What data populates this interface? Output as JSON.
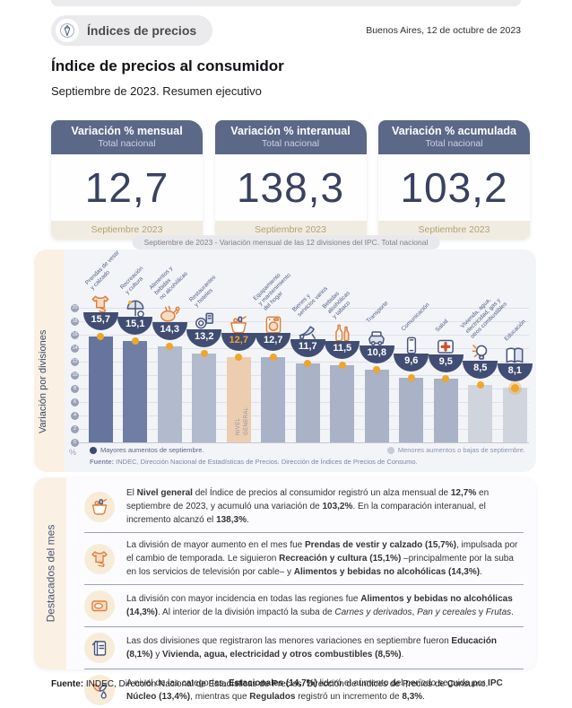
{
  "header": {
    "badge_label": "Índices de precios",
    "date": "Buenos Aires, 12 de octubre de 2023"
  },
  "title": "Índice de precios al consumidor",
  "subtitle": "Septiembre de 2023. Resumen ejecutivo",
  "kpis": {
    "items": [
      {
        "title": "Variación % mensual",
        "subtitle": "Total nacional",
        "value": "12,7",
        "period": "Septiembre 2023"
      },
      {
        "title": "Variación % interanual",
        "subtitle": "Total nacional",
        "value": "138,3",
        "period": "Septiembre 2023"
      },
      {
        "title": "Variación % acumulada",
        "subtitle": "Total nacional",
        "value": "103,2",
        "period": "Septiembre 2023"
      }
    ]
  },
  "chart_data": {
    "type": "bar",
    "title": "Septiembre de 2023 - Variación mensual de las 12 divisiones del IPC. Total nacional",
    "y_axis_title": "Variación por divisiones",
    "y_unit": "%",
    "ylim": [
      0,
      20
    ],
    "yticks": [
      20,
      18,
      16,
      14,
      12,
      10,
      8,
      6,
      4,
      2,
      0
    ],
    "grid": true,
    "categories": [
      "Prendas de vestir y calzado",
      "Recreación y cultura",
      "Alimentos y bebidas no alcohólicas",
      "Restaurantes y hoteles",
      "Nivel general",
      "Equipamiento y mantenimiento del hogar",
      "Bienes y servicios varios",
      "Bebidas alcohólicas y tabaco",
      "Transporte",
      "Comunicación",
      "Salud",
      "Vivienda, agua, electricidad, gas y otros combustibles",
      "Educación"
    ],
    "rotated_labels": [
      "Prendas de vestir\ny calzado",
      "Recreación\ny cultura",
      "Alimentos y\nbebidas\nno alcohólicas",
      "Restaurantes\ny hoteles",
      "",
      "Equipamiento\ny mantenimiento\ndel hogar",
      "Bienes y\nservicios varios",
      "Bebidas\nalcohólicas\ny tabaco",
      "Transporte",
      "Comunicación",
      "Salud",
      "Vivienda, agua,\nelectricidad, gas y\notros combustibles",
      "Educación"
    ],
    "values": [
      15.7,
      15.1,
      14.3,
      13.2,
      12.7,
      12.7,
      11.7,
      11.5,
      10.8,
      9.6,
      9.5,
      8.5,
      8.1
    ],
    "value_labels": [
      "15,7",
      "15,1",
      "14,3",
      "13,2",
      "12,7",
      "12,7",
      "11,7",
      "11,5",
      "10,8",
      "9,6",
      "9,5",
      "8,5",
      "8,1"
    ],
    "bar_colors": [
      "#66759d",
      "#707ea5",
      "#b2bace",
      "#b2bace",
      "#eccdb0",
      "#a9b2c6",
      "#a9b2c6",
      "#a9b2c6",
      "#a9b2c6",
      "#a9b2c6",
      "#a9b2c6",
      "#cfd4dd",
      "#cfd4dd"
    ],
    "icons": [
      "clothing-icon",
      "recreation-icon",
      "food-icon",
      "restaurant-icon",
      "basket-icon",
      "laundry-icon",
      "shoes-icon",
      "alcohol-icon",
      "transport-icon",
      "communication-icon",
      "health-icon",
      "housing-icon",
      "education-icon"
    ],
    "highlight_index": 4,
    "highlight_value_color": "#f0a233",
    "in_bar_label": "NIVEL\nGENERAL",
    "dot_color": "#eda72a",
    "dot_emphasis_index": 12,
    "legend": [
      {
        "label": "Mayores aumentos de septiembre.",
        "color": "#3f4a6e"
      },
      {
        "label": "Menores aumentos o bajas de septiembre.",
        "color": "#c6cbd7"
      }
    ],
    "source_segments": [
      {
        "t": "Fuente:",
        "b": true
      },
      {
        "t": " INDEC, Dirección Nacional de Estadísticas de Precios. Dirección de Índices de Precios de Consumo."
      }
    ]
  },
  "highlights": {
    "section_label": "Destacados del mes",
    "items": [
      {
        "icon": "basket-icon",
        "segments": [
          {
            "t": "El "
          },
          {
            "t": "Nivel general",
            "b": true
          },
          {
            "t": " del Índice de precios al consumidor registró un alza mensual de "
          },
          {
            "t": "12,7%",
            "b": true
          },
          {
            "t": " en septiembre de 2023, y acumuló una variación de "
          },
          {
            "t": "103,2%",
            "b": true
          },
          {
            "t": ". En la comparación interanual, el incremento alcanzó el "
          },
          {
            "t": "138,3%",
            "b": true
          },
          {
            "t": "."
          }
        ]
      },
      {
        "icon": "clothing-icon",
        "segments": [
          {
            "t": "La división de mayor aumento en el mes fue "
          },
          {
            "t": "Prendas de vestir y calzado (15,7%)",
            "b": true
          },
          {
            "t": ", impulsada por el cambio de temporada. Le siguieron "
          },
          {
            "t": "Recreación y cultura (15,1%)",
            "b": true
          },
          {
            "t": " –principalmente por la suba en los servicios de televisión por cable– y "
          },
          {
            "t": "Alimentos y bebidas no alcohólicas (14,3%)",
            "b": true
          },
          {
            "t": "."
          }
        ]
      },
      {
        "icon": "meat-icon",
        "segments": [
          {
            "t": "La división con mayor incidencia en todas las regiones fue "
          },
          {
            "t": "Alimentos y bebidas no alcohólicas (14,3%)",
            "b": true
          },
          {
            "t": ". Al interior de la división impactó la suba de "
          },
          {
            "t": "Carnes y derivados",
            "i": true
          },
          {
            "t": ", "
          },
          {
            "t": "Pan y cereales",
            "i": true
          },
          {
            "t": " y "
          },
          {
            "t": "Frutas",
            "i": true
          },
          {
            "t": "."
          }
        ]
      },
      {
        "icon": "notebook-icon",
        "segments": [
          {
            "t": "Las dos divisiones que registraron las menores variaciones en septiembre fueron "
          },
          {
            "t": "Educación (8,1%)",
            "b": true
          },
          {
            "t": " y "
          },
          {
            "t": "Vivienda, agua, electricidad y otros combustibles (8,5%)",
            "b": true
          },
          {
            "t": "."
          }
        ]
      },
      {
        "icon": "seasonal-icon",
        "segments": [
          {
            "t": "A nivel de las categorías, "
          },
          {
            "t": "Estacionales (14,7%)",
            "b": true
          },
          {
            "t": " lideró el aumento del período seguida por "
          },
          {
            "t": "IPC Núcleo (13,4%)",
            "b": true
          },
          {
            "t": ", mientras que "
          },
          {
            "t": "Regulados",
            "b": true
          },
          {
            "t": " registró un incremento de "
          },
          {
            "t": "8,3%",
            "b": true
          },
          {
            "t": "."
          }
        ]
      }
    ]
  },
  "footer": {
    "source_segments": [
      {
        "t": "Fuente:",
        "b": true
      },
      {
        "t": " INDEC, Dirección Nacional de Estadísticas de Precios. Dirección de Índices de Precios de Consumo."
      }
    ]
  }
}
